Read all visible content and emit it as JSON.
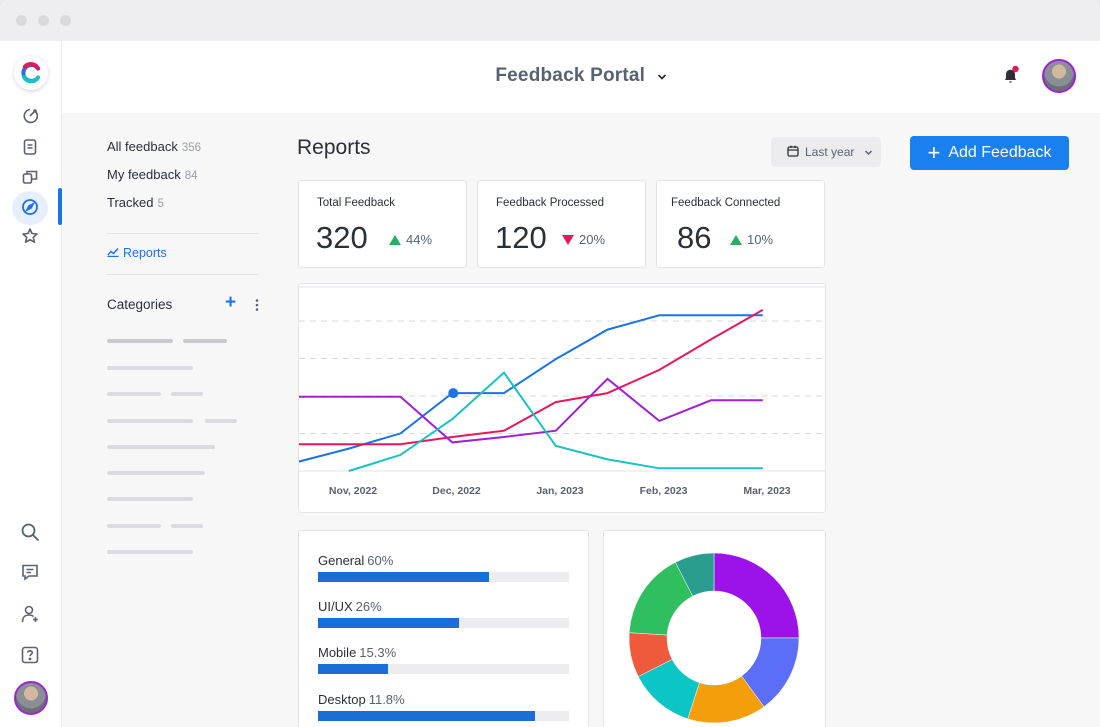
{
  "header": {
    "title": "Feedback Portal",
    "icons": [
      "chevron-down-icon",
      "bell-icon",
      "avatar"
    ],
    "notification_dot_color": "#e8175d"
  },
  "rail": {
    "icons": [
      "logo-icon",
      "activity-icon",
      "document-icon",
      "layers-icon",
      "compass-icon",
      "star-icon",
      "search-icon",
      "chat-icon",
      "add-user-icon",
      "help-icon",
      "avatar"
    ],
    "active": "compass-icon"
  },
  "sidebar": {
    "items": [
      {
        "label": "All feedback",
        "count": "356"
      },
      {
        "label": "My feedback",
        "count": "84"
      },
      {
        "label": "Tracked",
        "count": "5"
      }
    ],
    "reports_link": "Reports",
    "categories_title": "Categories"
  },
  "main": {
    "title": "Reports",
    "date_filter": "Last year",
    "add_button": "Add Feedback",
    "stats": [
      {
        "label": "Total Feedback",
        "value": "320",
        "change": "44%",
        "direction": "up"
      },
      {
        "label": "Feedback Processed",
        "value": "120",
        "change": "20%",
        "direction": "down"
      },
      {
        "label": "Feedback Connected",
        "value": "86",
        "change": "10%",
        "direction": "up"
      }
    ]
  },
  "categories": [
    {
      "name": "General",
      "pct": "60%",
      "value": 0.68
    },
    {
      "name": "UI/UX",
      "pct": "26%",
      "value": 0.56
    },
    {
      "name": "Mobile",
      "pct": "15.3%",
      "value": 0.28
    },
    {
      "name": "Desktop",
      "pct": "11.8%",
      "value": 0.865
    }
  ],
  "chart_data": [
    {
      "type": "line",
      "categories": [
        "Nov, 2022",
        "Dec, 2022",
        "Jan, 2023",
        "Feb, 2023",
        "Mar, 2023"
      ],
      "x": [
        0,
        0.5,
        1,
        1.5,
        2,
        2.5,
        3,
        3.5,
        4,
        4.5
      ],
      "grid": true,
      "series": [
        {
          "color": "#1a73e8",
          "values": [
            1.0,
            2.5,
            4.2,
            8.7,
            8.7,
            12.5,
            15.8,
            17.4,
            17.4,
            17.4
          ],
          "marker_index": 3
        },
        {
          "color": "#e8175d",
          "values": [
            3.0,
            3.0,
            3.0,
            3.8,
            4.5,
            7.7,
            8.7,
            11.3,
            14.7,
            18.0
          ]
        },
        {
          "color": "#a020d8",
          "values": [
            8.3,
            8.3,
            8.3,
            3.2,
            3.8,
            4.5,
            10.3,
            5.6,
            7.9,
            7.9
          ]
        },
        {
          "color": "#17c3c3",
          "values": [
            0.0,
            0.0,
            1.8,
            5.8,
            11.0,
            2.8,
            1.3,
            0.3,
            0.3,
            0.3
          ]
        }
      ]
    },
    {
      "type": "pie",
      "categories": [
        "Purple",
        "Blue",
        "Orange",
        "Teal",
        "Red",
        "Green",
        "Dark teal"
      ],
      "values": [
        25,
        15,
        15,
        12.5,
        8.5,
        16.5,
        7.5
      ],
      "colors": [
        "#9b13e8",
        "#5b6ef5",
        "#f59e0b",
        "#0cc6c6",
        "#f05a3c",
        "#2fbf5f",
        "#2a9d8f"
      ]
    }
  ]
}
